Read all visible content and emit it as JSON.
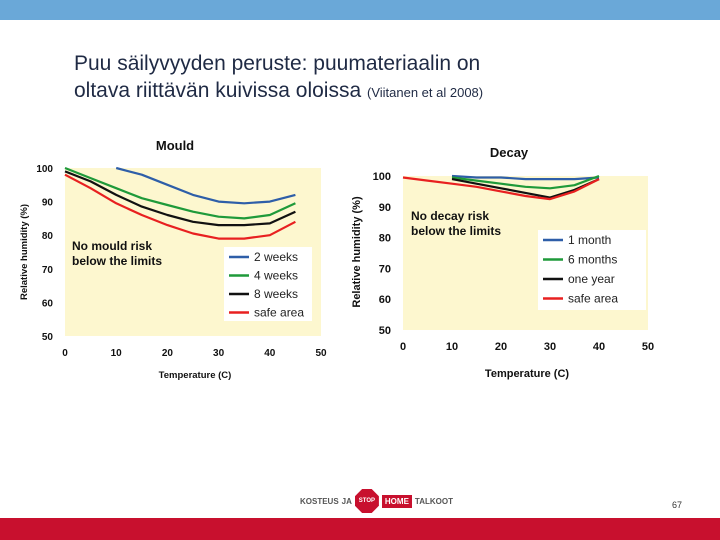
{
  "slide": {
    "title_line1": "Puu säilyvyyden peruste: puumateriaalin on",
    "title_line2": "oltava riittävän kuivissa oloissa",
    "citation": "(Viitanen et al 2008)",
    "page_number": "67",
    "logo_left": "KOSTEUS",
    "logo_mid": "JA",
    "logo_home": "HOME",
    "logo_right": "TALKOOT",
    "logo_stop": "STOP"
  },
  "colors": {
    "topbar": "#6aa8d8",
    "bottombar": "#c8102e",
    "plot_bg": "#fdf7cf"
  },
  "chart_data": [
    {
      "type": "line",
      "title": "Mould",
      "xlabel": "Temperature (C)",
      "ylabel": "Relative humidity (%)",
      "xlim": [
        0,
        50
      ],
      "ylim": [
        50,
        100
      ],
      "xticks": [
        0,
        10,
        20,
        30,
        40,
        50
      ],
      "yticks": [
        50,
        60,
        70,
        80,
        90,
        100
      ],
      "annotation": [
        "No mould risk",
        "below the limits"
      ],
      "legend_position": "bottom-right",
      "series": [
        {
          "name": "2 weeks",
          "color": "#2e5ea8",
          "x": [
            10,
            15,
            20,
            25,
            30,
            35,
            40,
            45
          ],
          "y": [
            100,
            98,
            95,
            92,
            90,
            89.5,
            90,
            92
          ]
        },
        {
          "name": "4 weeks",
          "color": "#1f9a3a",
          "x": [
            0,
            5,
            10,
            15,
            20,
            25,
            30,
            35,
            40,
            45
          ],
          "y": [
            100,
            97,
            94,
            91,
            89,
            87,
            85.5,
            85,
            86,
            89.5
          ]
        },
        {
          "name": "8 weeks",
          "color": "#111111",
          "x": [
            0,
            5,
            10,
            15,
            20,
            25,
            30,
            35,
            40,
            45
          ],
          "y": [
            99,
            96,
            92,
            88.5,
            86,
            84,
            83,
            83,
            83.5,
            87
          ]
        },
        {
          "name": "safe area",
          "color": "#e82020",
          "x": [
            0,
            5,
            10,
            15,
            20,
            25,
            30,
            35,
            40,
            45
          ],
          "y": [
            98,
            94,
            89.5,
            86,
            83,
            80.5,
            79,
            79,
            80,
            84
          ]
        }
      ]
    },
    {
      "type": "line",
      "title": "Decay",
      "xlabel": "Temperature (C)",
      "ylabel": "Relative humidity (%)",
      "xlim": [
        0,
        50
      ],
      "ylim": [
        50,
        100
      ],
      "xticks": [
        0,
        10,
        20,
        30,
        40,
        50
      ],
      "yticks": [
        50,
        60,
        70,
        80,
        90,
        100
      ],
      "annotation": [
        "No decay risk",
        "below the limits"
      ],
      "legend_position": "right",
      "series": [
        {
          "name": "1 month",
          "color": "#2e5ea8",
          "x": [
            10,
            15,
            20,
            25,
            30,
            35,
            40
          ],
          "y": [
            100,
            99.5,
            99.5,
            99,
            99,
            99,
            99.5
          ]
        },
        {
          "name": "6 months",
          "color": "#1f9a3a",
          "x": [
            10,
            15,
            20,
            25,
            30,
            35,
            40
          ],
          "y": [
            99.5,
            98.5,
            97.5,
            96.5,
            96,
            97,
            100
          ]
        },
        {
          "name": "one year",
          "color": "#111111",
          "x": [
            10,
            15,
            20,
            25,
            30,
            35,
            40
          ],
          "y": [
            99,
            97.5,
            96,
            94.5,
            93,
            95.5,
            99
          ]
        },
        {
          "name": "safe area",
          "color": "#e82020",
          "x": [
            0,
            5,
            10,
            15,
            20,
            25,
            30,
            35,
            40
          ],
          "y": [
            99.5,
            98.5,
            97.5,
            96.5,
            95,
            93.5,
            92.5,
            95,
            99
          ]
        }
      ]
    }
  ]
}
